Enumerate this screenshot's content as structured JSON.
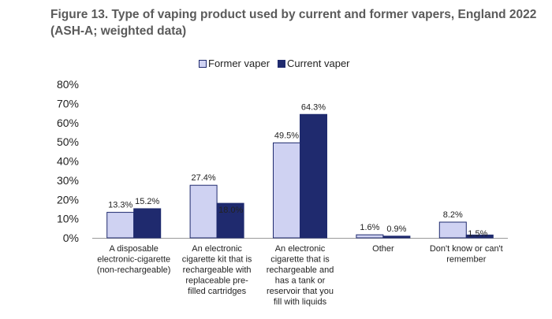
{
  "title": "Figure 13. Type of vaping product used by current and former vapers, England 2022 (ASH-A; weighted data)",
  "colors": {
    "former": "#cfd2f2",
    "current": "#1f2a6e",
    "bar_outline": "#1f2a6e",
    "axis": "#9a9a9a",
    "text": "#222222"
  },
  "chart_data": {
    "type": "bar",
    "categories": [
      [
        "A disposable",
        "electronic-cigarette",
        "(non-rechargeable)"
      ],
      [
        "An electronic",
        "cigarette kit that is",
        "rechargeable with",
        "replaceable pre-",
        "filled cartridges"
      ],
      [
        "An electronic",
        "cigarette that is",
        "rechargeable and",
        "has a tank or",
        "reservoir that you",
        "fill with liquids"
      ],
      [
        "Other"
      ],
      [
        "Don't know or can't",
        "remember"
      ]
    ],
    "series": [
      {
        "name": "Former vaper",
        "values": [
          13.3,
          27.4,
          49.5,
          1.6,
          8.2
        ],
        "labels": [
          "13.3%",
          "27.4%",
          "49.5%",
          "1.6%",
          "8.2%"
        ]
      },
      {
        "name": "Current vaper",
        "values": [
          15.2,
          18.0,
          64.3,
          0.9,
          1.5
        ],
        "labels": [
          "15.2%",
          "18.0%",
          "64.3%",
          "0.9%",
          "1.5%"
        ]
      }
    ],
    "ylim": [
      0,
      80
    ],
    "yticks": [
      "0%",
      "10%",
      "20%",
      "30%",
      "40%",
      "50%",
      "60%",
      "70%",
      "80%"
    ],
    "legend": "top-center",
    "grid": false
  }
}
